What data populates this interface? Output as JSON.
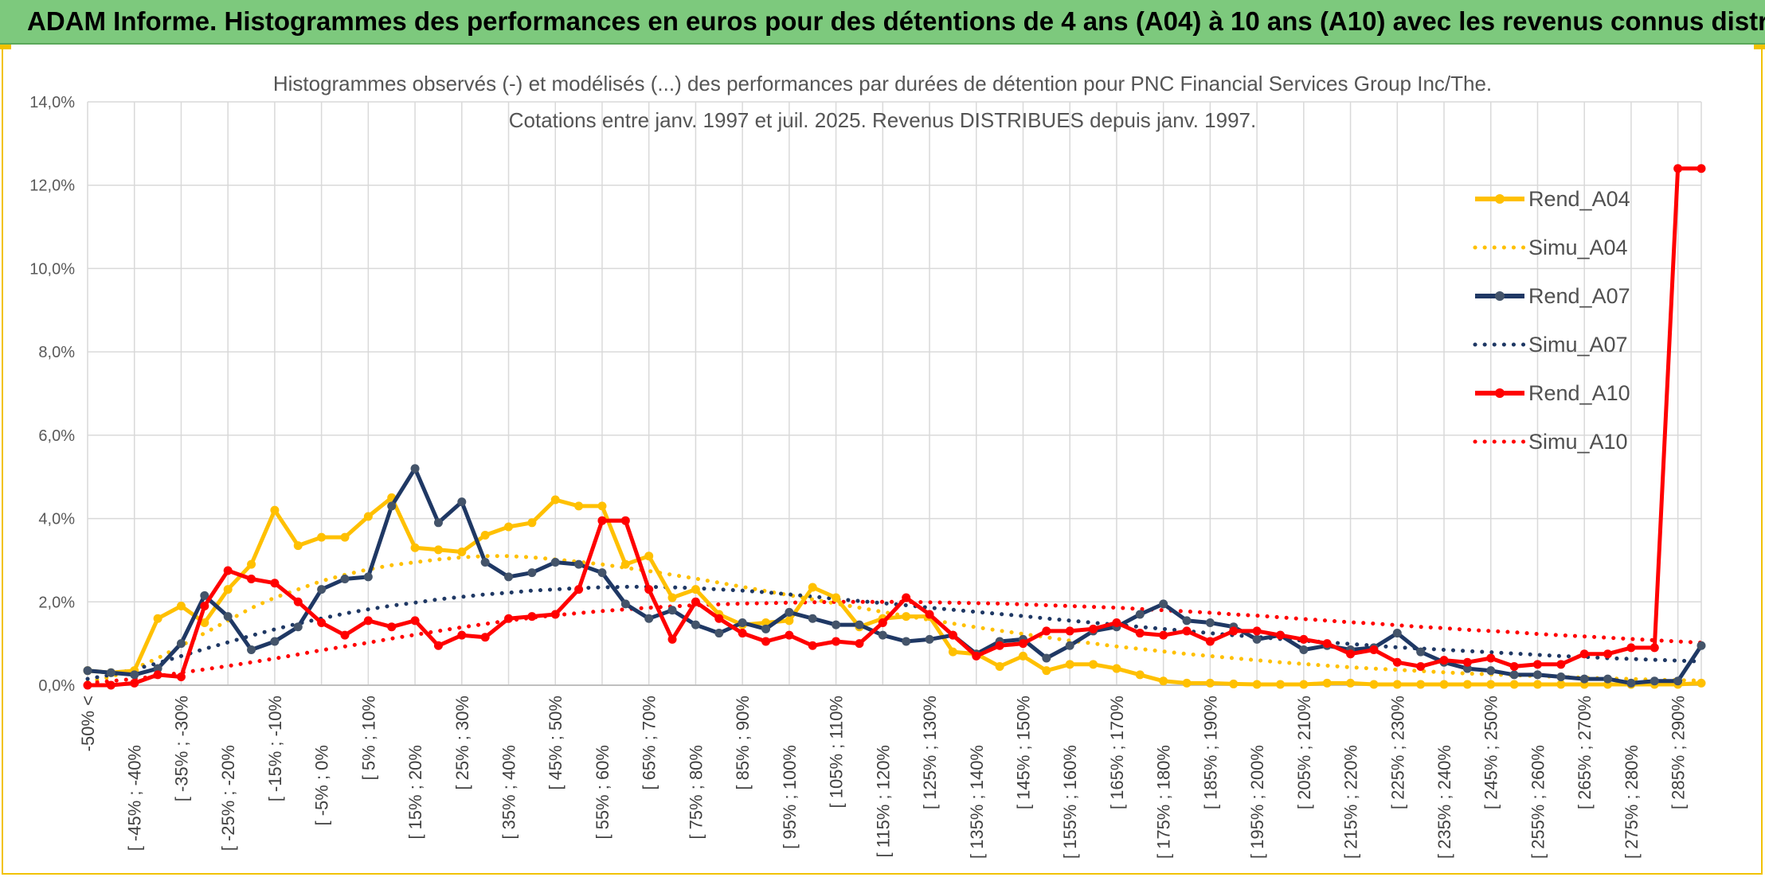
{
  "banner": {
    "title": "ADAM Informe. Histogrammes des performances en euros pour des détentions de 4 ans (A04) à 10 ans (A10) avec les revenus connus distribués"
  },
  "chart_data": {
    "type": "line",
    "title_line1": "Histogrammes observés (-) et modélisés (...) des performances par durées de détention pour PNC Financial Services Group Inc/The.",
    "title_line2": "Cotations entre janv. 1997 et juil. 2025. Revenus DISTRIBUES depuis janv. 1997.",
    "ylim": [
      0,
      14
    ],
    "yticks": [
      "0,0%",
      "2,0%",
      "4,0%",
      "6,0%",
      "8,0%",
      "10,0%",
      "12,0%",
      "14,0%"
    ],
    "grid": true,
    "legend_position": "top-right",
    "category_labels": [
      "-50% <",
      "[ -45% ; -40%",
      "[ -35% ; -30%",
      "[ -25% ; -20%",
      "[ -15% ; -10%",
      "[ -5% ; 0%",
      "[ 5% ; 10%",
      "[ 15% ; 20%",
      "[ 25% ; 30%",
      "[ 35% ; 40%",
      "[ 45% ; 50%",
      "[ 55% ; 60%",
      "[ 65% ; 70%",
      "[ 75% ; 80%",
      "[ 85% ; 90%",
      "[ 95% ; 100%",
      "[ 105% ; 110%",
      "[ 115% ; 120%",
      "[ 125% ; 130%",
      "[ 135% ; 140%",
      "[ 145% ; 150%",
      "[ 155% ; 160%",
      "[ 165% ; 170%",
      "[ 175% ; 180%",
      "[ 185% ; 190%",
      "[ 195% ; 200%",
      "[ 205% ; 210%",
      "[ 215% ; 220%",
      "[ 225% ; 230%",
      "[ 235% ; 240%",
      "[ 245% ; 250%",
      "[ 255% ; 260%",
      "[ 265% ; 270%",
      "[ 275% ; 280%",
      "[ 285% ; 290%"
    ],
    "n_points": 70,
    "series": [
      {
        "name": "Rend_A04",
        "style": "solid",
        "color": "#ffc000",
        "values": [
          0.35,
          0.3,
          0.35,
          1.6,
          1.9,
          1.5,
          2.3,
          2.9,
          4.2,
          3.35,
          3.55,
          3.55,
          4.05,
          4.5,
          3.3,
          3.25,
          3.2,
          3.6,
          3.8,
          3.9,
          4.45,
          4.3,
          4.3,
          2.9,
          3.1,
          2.1,
          2.3,
          1.7,
          1.45,
          1.5,
          1.55,
          2.35,
          2.1,
          1.4,
          1.6,
          1.65,
          1.65,
          0.8,
          0.75,
          0.45,
          0.7,
          0.35,
          0.5,
          0.5,
          0.4,
          0.25,
          0.1,
          0.05,
          0.05,
          0.03,
          0.02,
          0.02,
          0.02,
          0.05,
          0.05,
          0.02,
          0.02,
          0.02,
          0.02,
          0.02,
          0.02,
          0.02,
          0.02,
          0.02,
          0.02,
          0.02,
          0.02,
          0.02,
          0.02,
          0.05
        ]
      },
      {
        "name": "Simu_A04",
        "style": "dotted",
        "color": "#ffc000",
        "values": [
          0.08,
          0.2,
          0.4,
          0.65,
          0.95,
          1.25,
          1.55,
          1.85,
          2.1,
          2.3,
          2.5,
          2.65,
          2.78,
          2.88,
          2.95,
          3.02,
          3.07,
          3.1,
          3.1,
          3.07,
          3.02,
          2.96,
          2.9,
          2.82,
          2.74,
          2.65,
          2.56,
          2.46,
          2.36,
          2.26,
          2.16,
          2.06,
          1.96,
          1.86,
          1.76,
          1.66,
          1.57,
          1.48,
          1.39,
          1.31,
          1.23,
          1.15,
          1.07,
          1.0,
          0.93,
          0.87,
          0.81,
          0.75,
          0.7,
          0.65,
          0.6,
          0.55,
          0.51,
          0.47,
          0.43,
          0.4,
          0.37,
          0.34,
          0.31,
          0.28,
          0.26,
          0.24,
          0.22,
          0.2,
          0.18,
          0.16,
          0.15,
          0.13,
          0.12,
          0.11
        ]
      },
      {
        "name": "Rend_A07",
        "style": "solid",
        "color": "#1f3864",
        "values": [
          0.35,
          0.3,
          0.25,
          0.4,
          1.0,
          2.15,
          1.65,
          0.85,
          1.05,
          1.4,
          2.3,
          2.55,
          2.6,
          4.3,
          5.2,
          3.9,
          4.4,
          2.95,
          2.6,
          2.7,
          2.95,
          2.9,
          2.7,
          1.95,
          1.6,
          1.8,
          1.45,
          1.25,
          1.5,
          1.35,
          1.75,
          1.6,
          1.45,
          1.45,
          1.2,
          1.05,
          1.1,
          1.2,
          0.75,
          1.05,
          1.1,
          0.65,
          0.95,
          1.3,
          1.4,
          1.7,
          1.95,
          1.55,
          1.5,
          1.4,
          1.1,
          1.2,
          0.85,
          0.95,
          0.85,
          0.9,
          1.25,
          0.8,
          0.55,
          0.4,
          0.35,
          0.25,
          0.25,
          0.2,
          0.15,
          0.15,
          0.05,
          0.1,
          0.1,
          0.95
        ]
      },
      {
        "name": "Simu_A07",
        "style": "dotted",
        "color": "#1f3864",
        "values": [
          0.15,
          0.25,
          0.38,
          0.53,
          0.7,
          0.87,
          1.03,
          1.19,
          1.34,
          1.48,
          1.6,
          1.72,
          1.82,
          1.91,
          1.98,
          2.06,
          2.12,
          2.18,
          2.22,
          2.27,
          2.3,
          2.33,
          2.35,
          2.36,
          2.36,
          2.35,
          2.33,
          2.3,
          2.27,
          2.23,
          2.18,
          2.13,
          2.07,
          2.02,
          1.97,
          1.92,
          1.86,
          1.81,
          1.76,
          1.71,
          1.66,
          1.6,
          1.55,
          1.5,
          1.45,
          1.4,
          1.35,
          1.3,
          1.25,
          1.2,
          1.16,
          1.11,
          1.07,
          1.03,
          0.99,
          0.95,
          0.91,
          0.88,
          0.85,
          0.82,
          0.79,
          0.76,
          0.73,
          0.7,
          0.68,
          0.65,
          0.63,
          0.61,
          0.59,
          0.57
        ]
      },
      {
        "name": "Rend_A10",
        "style": "solid",
        "color": "#ff0000",
        "values": [
          0.0,
          0.0,
          0.05,
          0.25,
          0.2,
          1.9,
          2.75,
          2.55,
          2.45,
          2.0,
          1.5,
          1.2,
          1.55,
          1.4,
          1.55,
          0.95,
          1.2,
          1.15,
          1.6,
          1.65,
          1.7,
          2.3,
          3.95,
          3.95,
          2.3,
          1.1,
          2.0,
          1.6,
          1.25,
          1.05,
          1.2,
          0.95,
          1.05,
          1.0,
          1.5,
          2.1,
          1.7,
          1.2,
          0.7,
          0.95,
          1.0,
          1.3,
          1.3,
          1.35,
          1.5,
          1.25,
          1.2,
          1.3,
          1.05,
          1.3,
          1.3,
          1.2,
          1.1,
          1.0,
          0.75,
          0.85,
          0.55,
          0.45,
          0.6,
          0.55,
          0.65,
          0.45,
          0.5,
          0.5,
          0.75,
          0.75,
          0.9,
          0.9,
          12.4,
          12.4
        ]
      },
      {
        "name": "Simu_A10",
        "style": "dotted",
        "color": "#ff0000",
        "values": [
          0.05,
          0.1,
          0.15,
          0.22,
          0.3,
          0.38,
          0.46,
          0.55,
          0.64,
          0.74,
          0.84,
          0.93,
          1.02,
          1.12,
          1.21,
          1.3,
          1.39,
          1.47,
          1.55,
          1.62,
          1.68,
          1.73,
          1.78,
          1.82,
          1.86,
          1.89,
          1.92,
          1.94,
          1.96,
          1.97,
          1.98,
          1.99,
          2.0,
          2.0,
          2.0,
          2.0,
          1.99,
          1.98,
          1.97,
          1.96,
          1.94,
          1.92,
          1.9,
          1.88,
          1.86,
          1.83,
          1.8,
          1.77,
          1.74,
          1.7,
          1.67,
          1.63,
          1.59,
          1.55,
          1.51,
          1.48,
          1.44,
          1.4,
          1.37,
          1.33,
          1.3,
          1.27,
          1.23,
          1.2,
          1.17,
          1.14,
          1.11,
          1.08,
          1.05,
          1.02
        ]
      }
    ]
  }
}
